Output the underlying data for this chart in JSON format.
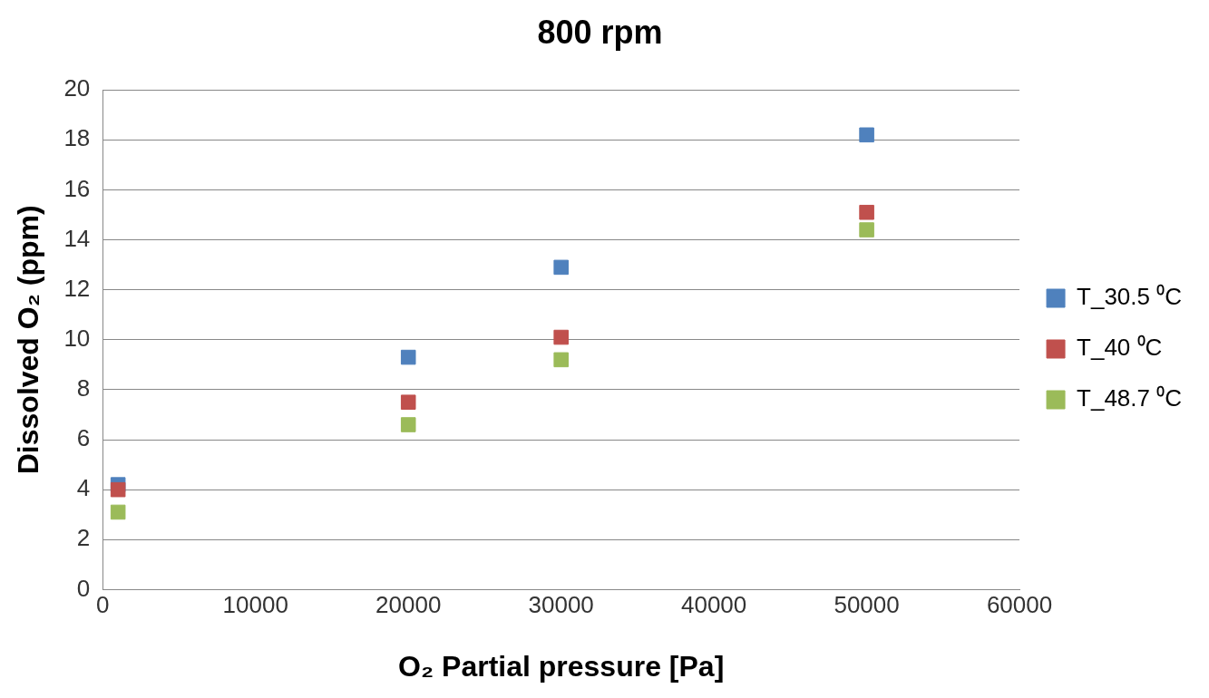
{
  "chart_data": {
    "type": "scatter",
    "title": "800 rpm",
    "xlabel": "O₂ Partial pressure [Pa]",
    "ylabel": "Dissolved O₂ (ppm)",
    "x": [
      1000,
      20000,
      30000,
      50000
    ],
    "series": [
      {
        "name": "T_30.5 ⁰C",
        "color": "#4f81bd",
        "values": [
          4.2,
          9.3,
          12.9,
          18.2
        ]
      },
      {
        "name": "T_40 ⁰C",
        "color": "#c0504d",
        "values": [
          4.0,
          7.5,
          10.1,
          15.1
        ]
      },
      {
        "name": "T_48.7 ⁰C",
        "color": "#9bbb59",
        "values": [
          3.1,
          6.6,
          9.2,
          14.4
        ]
      }
    ],
    "xlim": [
      0,
      60000
    ],
    "xticks": [
      0,
      10000,
      20000,
      30000,
      40000,
      50000,
      60000
    ],
    "ylim": [
      0,
      20
    ],
    "yticks": [
      0,
      2,
      4,
      6,
      8,
      10,
      12,
      14,
      16,
      18,
      20
    ],
    "grid": "y",
    "legend": "right",
    "marker": "square"
  }
}
